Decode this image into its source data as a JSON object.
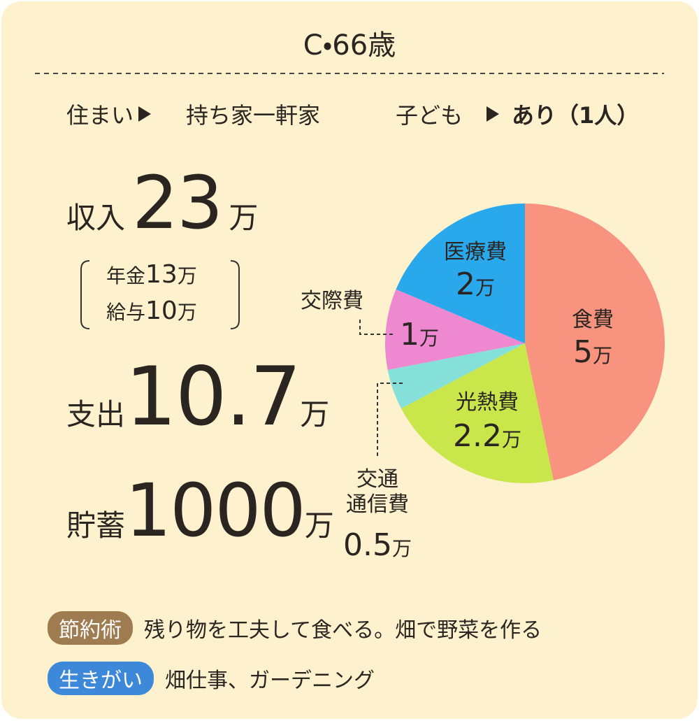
{
  "title": "C・66歳",
  "profile": {
    "housing": {
      "label": "住まい",
      "value": "持ち家一軒家"
    },
    "children": {
      "label": "子ども",
      "value": "あり（1人）"
    }
  },
  "income": {
    "label": "収入",
    "amount": 23,
    "unit": "万",
    "breakdown": [
      {
        "label": "年金",
        "amount": 13,
        "unit": "万"
      },
      {
        "label": "給与",
        "amount": 10,
        "unit": "万"
      }
    ]
  },
  "expense": {
    "label": "支出",
    "amount": 10.7,
    "unit": "万"
  },
  "savings": {
    "label": "貯蓄",
    "amount": 1000,
    "unit": "万"
  },
  "chart_data": {
    "type": "pie",
    "categories": [
      "食費",
      "光熱費",
      "交通\n通信費",
      "交際費",
      "医療費"
    ],
    "values": [
      5,
      2.2,
      0.5,
      1,
      2
    ],
    "value_labels": [
      "5万",
      "2.2万",
      "0.5万",
      "1万",
      "2万"
    ],
    "colors": [
      "#f7937f",
      "#c9e64b",
      "#86e0da",
      "#ee88d0",
      "#29a9ec"
    ]
  },
  "tips": [
    {
      "tag": "節約術",
      "text": "残り物を工夫して食べる。畑で野菜を作る"
    },
    {
      "tag": "生きがい",
      "text": "畑仕事、ガーデニング"
    }
  ]
}
